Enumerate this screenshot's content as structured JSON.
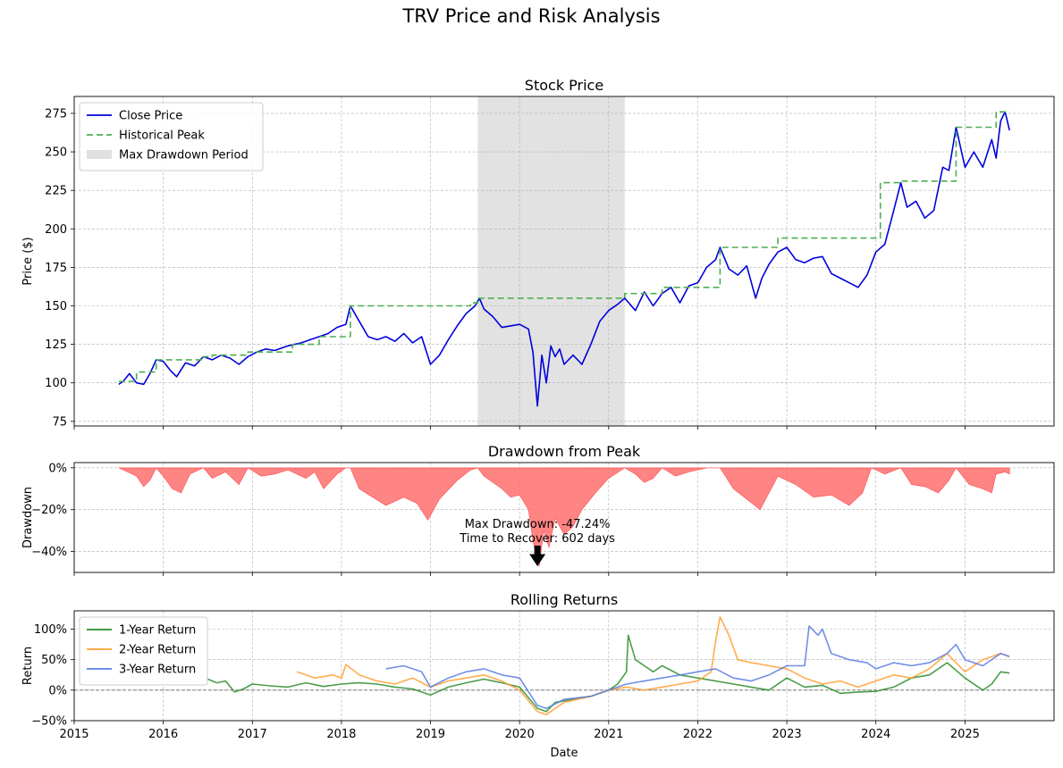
{
  "figure": {
    "title": "TRV Price and Risk Analysis"
  },
  "colors": {
    "close": "#0000dd",
    "peak": "#4caf50",
    "shade": "#d3d3d3",
    "drawdown": "#ff6e6e",
    "ret1": "#2a8c2a",
    "ret2": "#ff9f2f",
    "ret3": "#5b7be0",
    "grid": "#b0b0b0"
  },
  "chart_data": [
    {
      "type": "line",
      "title": "Stock Price",
      "ylabel": "Price ($)",
      "xlabel": "",
      "xlim": [
        2015.0,
        2026.0
      ],
      "ylim": [
        72,
        286
      ],
      "yticks": [
        75,
        100,
        125,
        150,
        175,
        200,
        225,
        250,
        275
      ],
      "ytick_labels": [
        "75",
        "100",
        "125",
        "150",
        "175",
        "200",
        "225",
        "250",
        "275"
      ],
      "grid": true,
      "legend_position": "top-left",
      "legend": [
        "Close Price",
        "Historical Peak",
        "Max Drawdown Period"
      ],
      "shaded_region": {
        "name": "Max Drawdown Period",
        "x": [
          2019.53,
          2021.18
        ]
      },
      "series": [
        {
          "name": "Close Price",
          "x": [
            2015.5,
            2015.55,
            2015.62,
            2015.7,
            2015.78,
            2015.85,
            2015.92,
            2016.0,
            2016.08,
            2016.15,
            2016.25,
            2016.35,
            2016.45,
            2016.55,
            2016.65,
            2016.75,
            2016.85,
            2016.95,
            2017.05,
            2017.15,
            2017.25,
            2017.4,
            2017.55,
            2017.65,
            2017.75,
            2017.85,
            2017.95,
            2018.05,
            2018.1,
            2018.2,
            2018.3,
            2018.4,
            2018.5,
            2018.6,
            2018.7,
            2018.8,
            2018.9,
            2019.0,
            2019.1,
            2019.2,
            2019.3,
            2019.4,
            2019.5,
            2019.55,
            2019.6,
            2019.7,
            2019.8,
            2019.9,
            2020.0,
            2020.1,
            2020.15,
            2020.2,
            2020.25,
            2020.3,
            2020.35,
            2020.4,
            2020.45,
            2020.5,
            2020.6,
            2020.7,
            2020.8,
            2020.9,
            2021.0,
            2021.1,
            2021.18,
            2021.3,
            2021.4,
            2021.5,
            2021.6,
            2021.7,
            2021.8,
            2021.9,
            2022.0,
            2022.1,
            2022.2,
            2022.25,
            2022.35,
            2022.45,
            2022.55,
            2022.65,
            2022.72,
            2022.8,
            2022.9,
            2023.0,
            2023.1,
            2023.2,
            2023.3,
            2023.4,
            2023.5,
            2023.6,
            2023.7,
            2023.8,
            2023.9,
            2024.0,
            2024.1,
            2024.2,
            2024.28,
            2024.35,
            2024.45,
            2024.55,
            2024.65,
            2024.75,
            2024.82,
            2024.9,
            2025.0,
            2025.1,
            2025.2,
            2025.3,
            2025.35,
            2025.4,
            2025.45,
            2025.5
          ],
          "values": [
            99,
            101,
            106,
            100,
            99,
            106,
            115,
            114,
            108,
            104,
            113,
            111,
            117,
            115,
            118,
            116,
            112,
            117,
            120,
            122,
            121,
            124,
            126,
            128,
            130,
            132,
            136,
            138,
            150,
            140,
            130,
            128,
            130,
            127,
            132,
            126,
            130,
            112,
            118,
            128,
            137,
            145,
            150,
            155,
            148,
            143,
            136,
            137,
            138,
            135,
            120,
            85,
            118,
            100,
            124,
            117,
            122,
            112,
            118,
            112,
            125,
            140,
            147,
            151,
            155,
            147,
            159,
            150,
            158,
            162,
            152,
            163,
            165,
            175,
            180,
            188,
            174,
            170,
            176,
            155,
            168,
            177,
            185,
            188,
            180,
            178,
            181,
            182,
            171,
            168,
            165,
            162,
            170,
            185,
            190,
            212,
            230,
            214,
            218,
            207,
            212,
            240,
            238,
            266,
            240,
            250,
            240,
            258,
            246,
            270,
            276,
            264
          ]
        },
        {
          "name": "Historical Peak",
          "x": [
            2015.5,
            2015.7,
            2015.7,
            2015.92,
            2015.92,
            2016.45,
            2016.45,
            2016.55,
            2016.55,
            2016.95,
            2016.95,
            2017.45,
            2017.45,
            2017.75,
            2017.75,
            2018.1,
            2018.1,
            2019.45,
            2019.45,
            2019.53,
            2019.53,
            2021.18,
            2021.18,
            2021.6,
            2021.6,
            2022.25,
            2022.25,
            2022.9,
            2022.9,
            2024.05,
            2024.05,
            2024.28,
            2024.28,
            2024.9,
            2024.9,
            2025.35,
            2025.35,
            2025.5
          ],
          "values": [
            101,
            101,
            107,
            107,
            115,
            115,
            117,
            117,
            118,
            118,
            120,
            120,
            125,
            125,
            130,
            130,
            150,
            150,
            152,
            152,
            155,
            155,
            158,
            158,
            162,
            162,
            188,
            188,
            194,
            194,
            230,
            230,
            231,
            231,
            266,
            266,
            276,
            276
          ]
        }
      ]
    },
    {
      "type": "area",
      "title": "Drawdown from Peak",
      "ylabel": "Drawdown",
      "xlabel": "",
      "xlim": [
        2015.0,
        2026.0
      ],
      "ylim": [
        -50,
        2.5
      ],
      "yticks": [
        0,
        -20,
        -40
      ],
      "ytick_labels": [
        "0%",
        "−20%",
        "−40%"
      ],
      "grid": true,
      "annotation": {
        "text": [
          "Max Drawdown: -47.24%",
          "Time to Recover: 602 days"
        ],
        "x": 2020.2,
        "y": -47.24
      },
      "series": [
        {
          "name": "Drawdown",
          "x": [
            2015.5,
            2015.6,
            2015.7,
            2015.78,
            2015.85,
            2015.92,
            2016.0,
            2016.1,
            2016.2,
            2016.3,
            2016.45,
            2016.55,
            2016.7,
            2016.85,
            2016.95,
            2017.1,
            2017.25,
            2017.4,
            2017.6,
            2017.7,
            2017.8,
            2017.95,
            2018.05,
            2018.1,
            2018.2,
            2018.35,
            2018.5,
            2018.7,
            2018.85,
            2018.97,
            2019.1,
            2019.3,
            2019.45,
            2019.53,
            2019.6,
            2019.8,
            2019.9,
            2020.0,
            2020.1,
            2020.15,
            2020.22,
            2020.27,
            2020.33,
            2020.4,
            2020.5,
            2020.6,
            2020.7,
            2020.85,
            2021.0,
            2021.18,
            2021.3,
            2021.4,
            2021.5,
            2021.6,
            2021.75,
            2021.9,
            2022.1,
            2022.25,
            2022.4,
            2022.55,
            2022.7,
            2022.9,
            2023.1,
            2023.3,
            2023.5,
            2023.7,
            2023.85,
            2023.95,
            2024.1,
            2024.28,
            2024.4,
            2024.55,
            2024.7,
            2024.82,
            2024.9,
            2025.05,
            2025.2,
            2025.3,
            2025.35,
            2025.45,
            2025.5
          ],
          "values": [
            0,
            -2,
            -4,
            -9,
            -6,
            0,
            -4,
            -10,
            -12,
            -3,
            0,
            -5,
            -2,
            -8,
            0,
            -4,
            -3,
            -1,
            -5,
            -2,
            -10,
            -3,
            0,
            0,
            -10,
            -14,
            -18,
            -14,
            -17,
            -25,
            -15,
            -6,
            -1,
            0,
            -4,
            -10,
            -14,
            -13,
            -20,
            -35,
            -47.2,
            -30,
            -38,
            -24,
            -32,
            -28,
            -20,
            -12,
            -5,
            0,
            -3,
            -7,
            -5,
            0,
            -4,
            -2,
            0,
            0,
            -10,
            -15,
            -20,
            -4,
            -8,
            -14,
            -13,
            -18,
            -12,
            0,
            -3,
            0,
            -8,
            -9,
            -12,
            -6,
            0,
            -8,
            -10,
            -12,
            -3,
            -2,
            -3
          ]
        }
      ]
    },
    {
      "type": "line",
      "title": "Rolling Returns",
      "ylabel": "Return",
      "xlabel": "Date",
      "xlim": [
        2015.0,
        2026.0
      ],
      "ylim": [
        -50,
        130
      ],
      "yticks": [
        100,
        50,
        0,
        -50
      ],
      "ytick_labels": [
        "100%",
        "50%",
        "0%",
        "−50%"
      ],
      "xticks": [
        2015,
        2016,
        2017,
        2018,
        2019,
        2020,
        2021,
        2022,
        2023,
        2024,
        2025
      ],
      "xtick_labels": [
        "2015",
        "2016",
        "2017",
        "2018",
        "2019",
        "2020",
        "2021",
        "2022",
        "2023",
        "2024",
        "2025"
      ],
      "grid": true,
      "reference_line": 0,
      "legend_position": "top-left",
      "legend": [
        "1-Year Return",
        "2-Year Return",
        "3-Year Return"
      ],
      "series": [
        {
          "name": "1-Year Return",
          "x": [
            2016.5,
            2016.6,
            2016.7,
            2016.8,
            2016.9,
            2017.0,
            2017.2,
            2017.4,
            2017.6,
            2017.8,
            2018.0,
            2018.2,
            2018.4,
            2018.6,
            2018.8,
            2019.0,
            2019.2,
            2019.4,
            2019.6,
            2019.8,
            2020.0,
            2020.2,
            2020.3,
            2020.4,
            2020.6,
            2020.8,
            2021.0,
            2021.1,
            2021.2,
            2021.22,
            2021.3,
            2021.4,
            2021.5,
            2021.6,
            2021.8,
            2022.0,
            2022.2,
            2022.4,
            2022.6,
            2022.8,
            2023.0,
            2023.2,
            2023.4,
            2023.6,
            2023.8,
            2024.0,
            2024.2,
            2024.4,
            2024.6,
            2024.8,
            2025.0,
            2025.2,
            2025.3,
            2025.4,
            2025.5
          ],
          "values": [
            18,
            12,
            15,
            -3,
            2,
            10,
            7,
            5,
            12,
            6,
            10,
            12,
            10,
            5,
            2,
            -8,
            5,
            12,
            18,
            12,
            5,
            -30,
            -35,
            -20,
            -15,
            -10,
            0,
            10,
            30,
            90,
            50,
            40,
            30,
            40,
            25,
            20,
            15,
            10,
            5,
            0,
            20,
            5,
            8,
            -5,
            -3,
            -2,
            5,
            20,
            25,
            45,
            20,
            0,
            10,
            30,
            28
          ]
        },
        {
          "name": "2-Year Return",
          "x": [
            2017.5,
            2017.7,
            2017.9,
            2018.0,
            2018.05,
            2018.2,
            2018.4,
            2018.6,
            2018.8,
            2019.0,
            2019.2,
            2019.4,
            2019.6,
            2019.8,
            2020.0,
            2020.2,
            2020.3,
            2020.5,
            2020.8,
            2021.0,
            2021.2,
            2021.4,
            2021.6,
            2021.8,
            2022.0,
            2022.15,
            2022.2,
            2022.25,
            2022.35,
            2022.45,
            2022.6,
            2022.8,
            2023.0,
            2023.2,
            2023.4,
            2023.6,
            2023.8,
            2024.0,
            2024.2,
            2024.4,
            2024.6,
            2024.8,
            2025.0,
            2025.2,
            2025.4,
            2025.5
          ],
          "values": [
            30,
            20,
            25,
            20,
            42,
            25,
            15,
            10,
            20,
            5,
            15,
            20,
            25,
            15,
            0,
            -35,
            -40,
            -20,
            -10,
            0,
            5,
            0,
            5,
            10,
            15,
            30,
            80,
            120,
            90,
            50,
            45,
            40,
            35,
            20,
            10,
            15,
            5,
            15,
            25,
            20,
            35,
            60,
            30,
            50,
            60,
            55
          ]
        },
        {
          "name": "3-Year Return",
          "x": [
            2018.5,
            2018.7,
            2018.9,
            2019.0,
            2019.2,
            2019.4,
            2019.6,
            2019.8,
            2020.0,
            2020.2,
            2020.3,
            2020.5,
            2020.8,
            2021.0,
            2021.2,
            2021.4,
            2021.6,
            2021.8,
            2022.0,
            2022.2,
            2022.4,
            2022.6,
            2022.8,
            2023.0,
            2023.2,
            2023.25,
            2023.35,
            2023.4,
            2023.5,
            2023.7,
            2023.9,
            2024.0,
            2024.2,
            2024.4,
            2024.6,
            2024.8,
            2024.9,
            2025.0,
            2025.2,
            2025.4,
            2025.5
          ],
          "values": [
            35,
            40,
            30,
            5,
            20,
            30,
            35,
            25,
            20,
            -25,
            -30,
            -15,
            -10,
            0,
            10,
            15,
            20,
            25,
            30,
            35,
            20,
            15,
            25,
            40,
            40,
            105,
            90,
            100,
            60,
            50,
            45,
            35,
            45,
            40,
            45,
            60,
            75,
            50,
            40,
            60,
            55
          ]
        }
      ]
    }
  ]
}
